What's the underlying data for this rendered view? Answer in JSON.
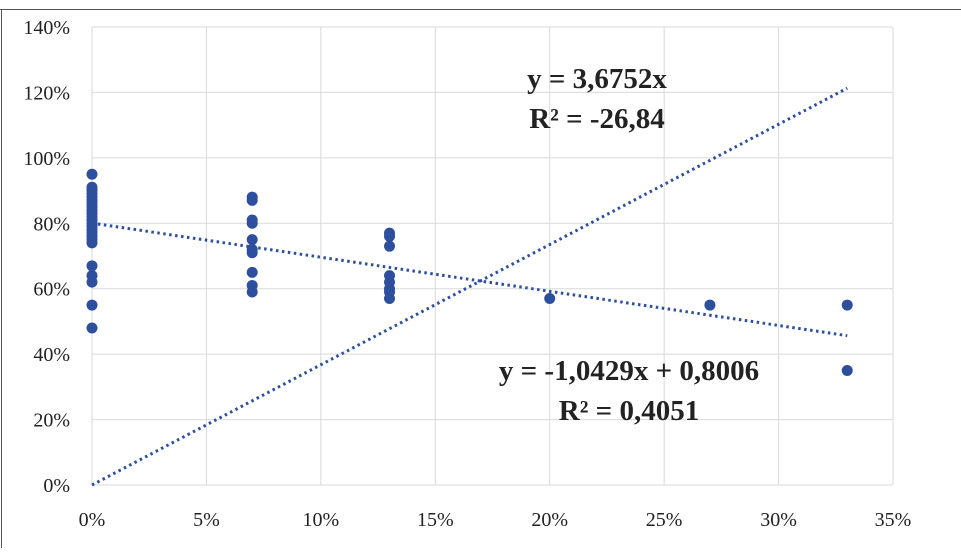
{
  "chart_data": {
    "type": "scatter",
    "title": "",
    "xlabel": "",
    "ylabel": "",
    "xlim": [
      0,
      0.35
    ],
    "ylim": [
      0,
      1.4
    ],
    "x_ticks": [
      {
        "value": 0,
        "label": "0%"
      },
      {
        "value": 0.05,
        "label": "5%"
      },
      {
        "value": 0.1,
        "label": "10%"
      },
      {
        "value": 0.15,
        "label": "15%"
      },
      {
        "value": 0.2,
        "label": "20%"
      },
      {
        "value": 0.25,
        "label": "25%"
      },
      {
        "value": 0.3,
        "label": "30%"
      },
      {
        "value": 0.35,
        "label": "35%"
      }
    ],
    "y_ticks": [
      {
        "value": 0,
        "label": "0%"
      },
      {
        "value": 0.2,
        "label": "20%"
      },
      {
        "value": 0.4,
        "label": "40%"
      },
      {
        "value": 0.6,
        "label": "60%"
      },
      {
        "value": 0.8,
        "label": "80%"
      },
      {
        "value": 1.0,
        "label": "100%"
      },
      {
        "value": 1.2,
        "label": "120%"
      },
      {
        "value": 1.4,
        "label": "140%"
      }
    ],
    "grid": true,
    "legend": "none",
    "marker_color": "#2e4f9e",
    "points": [
      {
        "x": 0,
        "y": 0.95
      },
      {
        "x": 0,
        "y": 0.91
      },
      {
        "x": 0,
        "y": 0.9
      },
      {
        "x": 0,
        "y": 0.89
      },
      {
        "x": 0,
        "y": 0.88
      },
      {
        "x": 0,
        "y": 0.87
      },
      {
        "x": 0,
        "y": 0.86
      },
      {
        "x": 0,
        "y": 0.85
      },
      {
        "x": 0,
        "y": 0.84
      },
      {
        "x": 0,
        "y": 0.83
      },
      {
        "x": 0,
        "y": 0.82
      },
      {
        "x": 0,
        "y": 0.81
      },
      {
        "x": 0,
        "y": 0.8
      },
      {
        "x": 0,
        "y": 0.79
      },
      {
        "x": 0,
        "y": 0.78
      },
      {
        "x": 0,
        "y": 0.77
      },
      {
        "x": 0,
        "y": 0.76
      },
      {
        "x": 0,
        "y": 0.75
      },
      {
        "x": 0,
        "y": 0.74
      },
      {
        "x": 0,
        "y": 0.67
      },
      {
        "x": 0,
        "y": 0.64
      },
      {
        "x": 0,
        "y": 0.62
      },
      {
        "x": 0,
        "y": 0.55
      },
      {
        "x": 0,
        "y": 0.48
      },
      {
        "x": 0.07,
        "y": 0.88
      },
      {
        "x": 0.07,
        "y": 0.87
      },
      {
        "x": 0.07,
        "y": 0.81
      },
      {
        "x": 0.07,
        "y": 0.8
      },
      {
        "x": 0.07,
        "y": 0.75
      },
      {
        "x": 0.07,
        "y": 0.72
      },
      {
        "x": 0.07,
        "y": 0.71
      },
      {
        "x": 0.07,
        "y": 0.65
      },
      {
        "x": 0.07,
        "y": 0.61
      },
      {
        "x": 0.07,
        "y": 0.59
      },
      {
        "x": 0.13,
        "y": 0.77
      },
      {
        "x": 0.13,
        "y": 0.76
      },
      {
        "x": 0.13,
        "y": 0.73
      },
      {
        "x": 0.13,
        "y": 0.64
      },
      {
        "x": 0.13,
        "y": 0.62
      },
      {
        "x": 0.13,
        "y": 0.6
      },
      {
        "x": 0.13,
        "y": 0.59
      },
      {
        "x": 0.13,
        "y": 0.57
      },
      {
        "x": 0.2,
        "y": 0.57
      },
      {
        "x": 0.27,
        "y": 0.55
      },
      {
        "x": 0.33,
        "y": 0.55
      },
      {
        "x": 0.33,
        "y": 0.35
      }
    ],
    "trendlines": [
      {
        "slope": 3.6752,
        "intercept": 0,
        "x_range": [
          0,
          0.33
        ],
        "style": "dotted",
        "equation": "y = 3,6752x",
        "r2": "R² = -26,84"
      },
      {
        "slope": -1.0429,
        "intercept": 0.8006,
        "x_range": [
          0,
          0.33
        ],
        "style": "dotted",
        "equation": "y = -1,0429x + 0,8006",
        "r2": "R² = 0,4051"
      }
    ]
  }
}
